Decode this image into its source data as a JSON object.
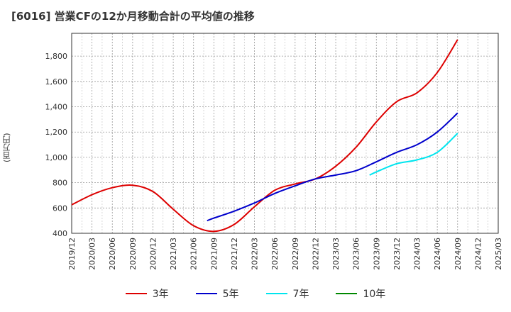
{
  "chart_data": {
    "type": "line",
    "title": "[6016]  営業CFの12か月移動合計の平均値の推移",
    "ylabel": "(百万円)",
    "xlabel": "",
    "ylim": [
      400,
      1980
    ],
    "yticks": [
      400,
      600,
      800,
      1000,
      1200,
      1400,
      1600,
      1800
    ],
    "ytick_labels": [
      "400",
      "600",
      "800",
      "1,000",
      "1,200",
      "1,400",
      "1,600",
      "1,800"
    ],
    "xticks": [
      "2019/12",
      "2020/03",
      "2020/06",
      "2020/09",
      "2020/12",
      "2021/03",
      "2021/06",
      "2021/09",
      "2021/12",
      "2022/03",
      "2022/06",
      "2022/09",
      "2022/12",
      "2023/03",
      "2023/06",
      "2023/09",
      "2023/12",
      "2024/03",
      "2024/06",
      "2024/09",
      "2024/12",
      "2025/03"
    ],
    "grid": true,
    "legend_position": "bottom",
    "series": [
      {
        "name": "3年",
        "color": "#dd0000",
        "x": [
          "2019/12",
          "2020/03",
          "2020/06",
          "2020/09",
          "2020/12",
          "2021/03",
          "2021/06",
          "2021/09",
          "2021/12",
          "2022/03",
          "2022/06",
          "2022/09",
          "2022/12",
          "2023/03",
          "2023/06",
          "2023/09",
          "2023/12",
          "2024/03",
          "2024/06",
          "2024/09"
        ],
        "values": [
          625,
          705,
          760,
          780,
          730,
          590,
          460,
          415,
          470,
          610,
          740,
          790,
          830,
          930,
          1080,
          1280,
          1440,
          1510,
          1670,
          1930
        ]
      },
      {
        "name": "5年",
        "color": "#0000cc",
        "x": [
          "2021/08",
          "2021/09",
          "2021/12",
          "2022/03",
          "2022/06",
          "2022/09",
          "2022/12",
          "2023/03",
          "2023/06",
          "2023/09",
          "2023/12",
          "2024/03",
          "2024/06",
          "2024/09"
        ],
        "values": [
          500,
          520,
          575,
          640,
          715,
          775,
          830,
          860,
          895,
          965,
          1040,
          1100,
          1200,
          1350
        ]
      },
      {
        "name": "7年",
        "color": "#00e5ee",
        "x": [
          "2023/08",
          "2023/09",
          "2023/12",
          "2024/03",
          "2024/06",
          "2024/09"
        ],
        "values": [
          860,
          885,
          950,
          980,
          1040,
          1190
        ]
      },
      {
        "name": "10年",
        "color": "#008800",
        "x": [],
        "values": []
      }
    ]
  }
}
